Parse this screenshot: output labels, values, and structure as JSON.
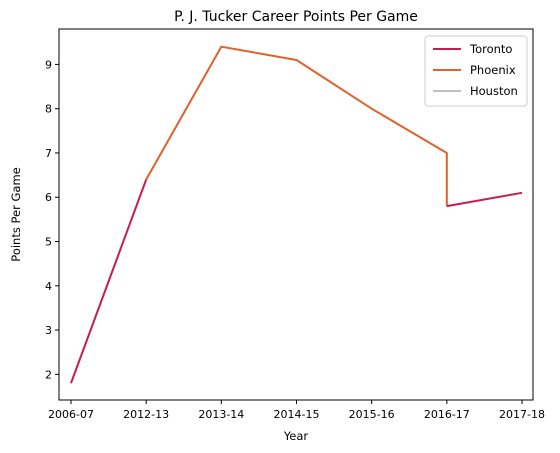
{
  "chart_data": {
    "type": "line",
    "title": "P. J. Tucker Career Points Per Game",
    "xlabel": "Year",
    "ylabel": "Points Per Game",
    "categories": [
      "2006-07",
      "2012-13",
      "2013-14",
      "2014-15",
      "2015-16",
      "2016-17",
      "2017-18"
    ],
    "yticks": [
      2,
      3,
      4,
      5,
      6,
      7,
      8,
      9
    ],
    "ylim": [
      1.42,
      9.8
    ],
    "grid": false,
    "legend_position": "top-right",
    "series": [
      {
        "name": "Toronto",
        "color": "#c41e4a",
        "points": [
          {
            "x": "2006-07",
            "y": 1.8
          },
          {
            "x": "2012-13",
            "y": 6.4
          }
        ]
      },
      {
        "name": "Phoenix",
        "color": "#e0612b",
        "points": [
          {
            "x": "2012-13",
            "y": 6.4
          },
          {
            "x": "2013-14",
            "y": 9.4
          },
          {
            "x": "2014-15",
            "y": 9.1
          },
          {
            "x": "2015-16",
            "y": 8.0
          },
          {
            "x": "2016-17",
            "y": 7.0
          },
          {
            "x": "2016-17",
            "y": 5.8
          }
        ]
      },
      {
        "name": "Toronto",
        "color": "#c41e4a",
        "show_in_legend": false,
        "points": [
          {
            "x": "2016-17",
            "y": 5.8
          },
          {
            "x": "2017-18",
            "y": 6.1
          }
        ]
      },
      {
        "name": "Houston",
        "color": "#bfbfbf",
        "points": []
      }
    ]
  }
}
